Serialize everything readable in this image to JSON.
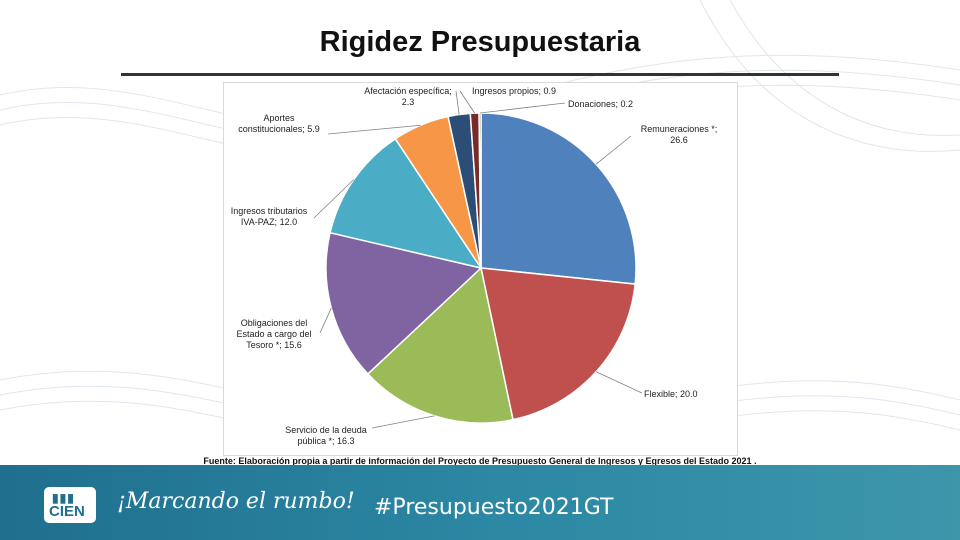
{
  "slide": {
    "title": "Rigidez Presupuestaria",
    "source": "Fuente: Elaboración propia a partir de información del Proyecto de Presupuesto General de Ingresos y Egresos del Estado 2021 .",
    "footer": {
      "logo_top": "▮▮▮",
      "logo_bottom": "CIEN",
      "slogan": "¡Marcando el rumbo!",
      "hashtag": "#Presupuesto2021GT",
      "background": "#2b87a3"
    }
  },
  "chart_data": {
    "type": "pie",
    "title": "",
    "slices": [
      {
        "label_lines": [
          "Remuneraciones *;",
          "26.6"
        ],
        "value": 26.6,
        "color": "#4f81bd"
      },
      {
        "label_lines": [
          "Flexible;  20.0"
        ],
        "value": 20.0,
        "color": "#c0504d"
      },
      {
        "label_lines": [
          "Servicio de la deuda",
          "pública *;  16.3"
        ],
        "value": 16.3,
        "color": "#9bbb59"
      },
      {
        "label_lines": [
          "Obligaciones del",
          "Estado a cargo del",
          "Tesoro *;  15.6"
        ],
        "value": 15.6,
        "color": "#8064a2"
      },
      {
        "label_lines": [
          "Ingresos tributarios",
          "IVA-PAZ;  12.0"
        ],
        "value": 12.0,
        "color": "#4bacc6"
      },
      {
        "label_lines": [
          "Aportes",
          "constitucionales;  5.9"
        ],
        "value": 5.9,
        "color": "#f79646"
      },
      {
        "label_lines": [
          "Afectación específica;",
          "2.3"
        ],
        "value": 2.3,
        "color": "#2c4d75"
      },
      {
        "label_lines": [
          "Ingresos propios;  0.9"
        ],
        "value": 0.9,
        "color": "#772c2a"
      },
      {
        "label_lines": [
          "Donaciones;  0.2"
        ],
        "value": 0.2,
        "color": "#5f7530"
      }
    ]
  }
}
